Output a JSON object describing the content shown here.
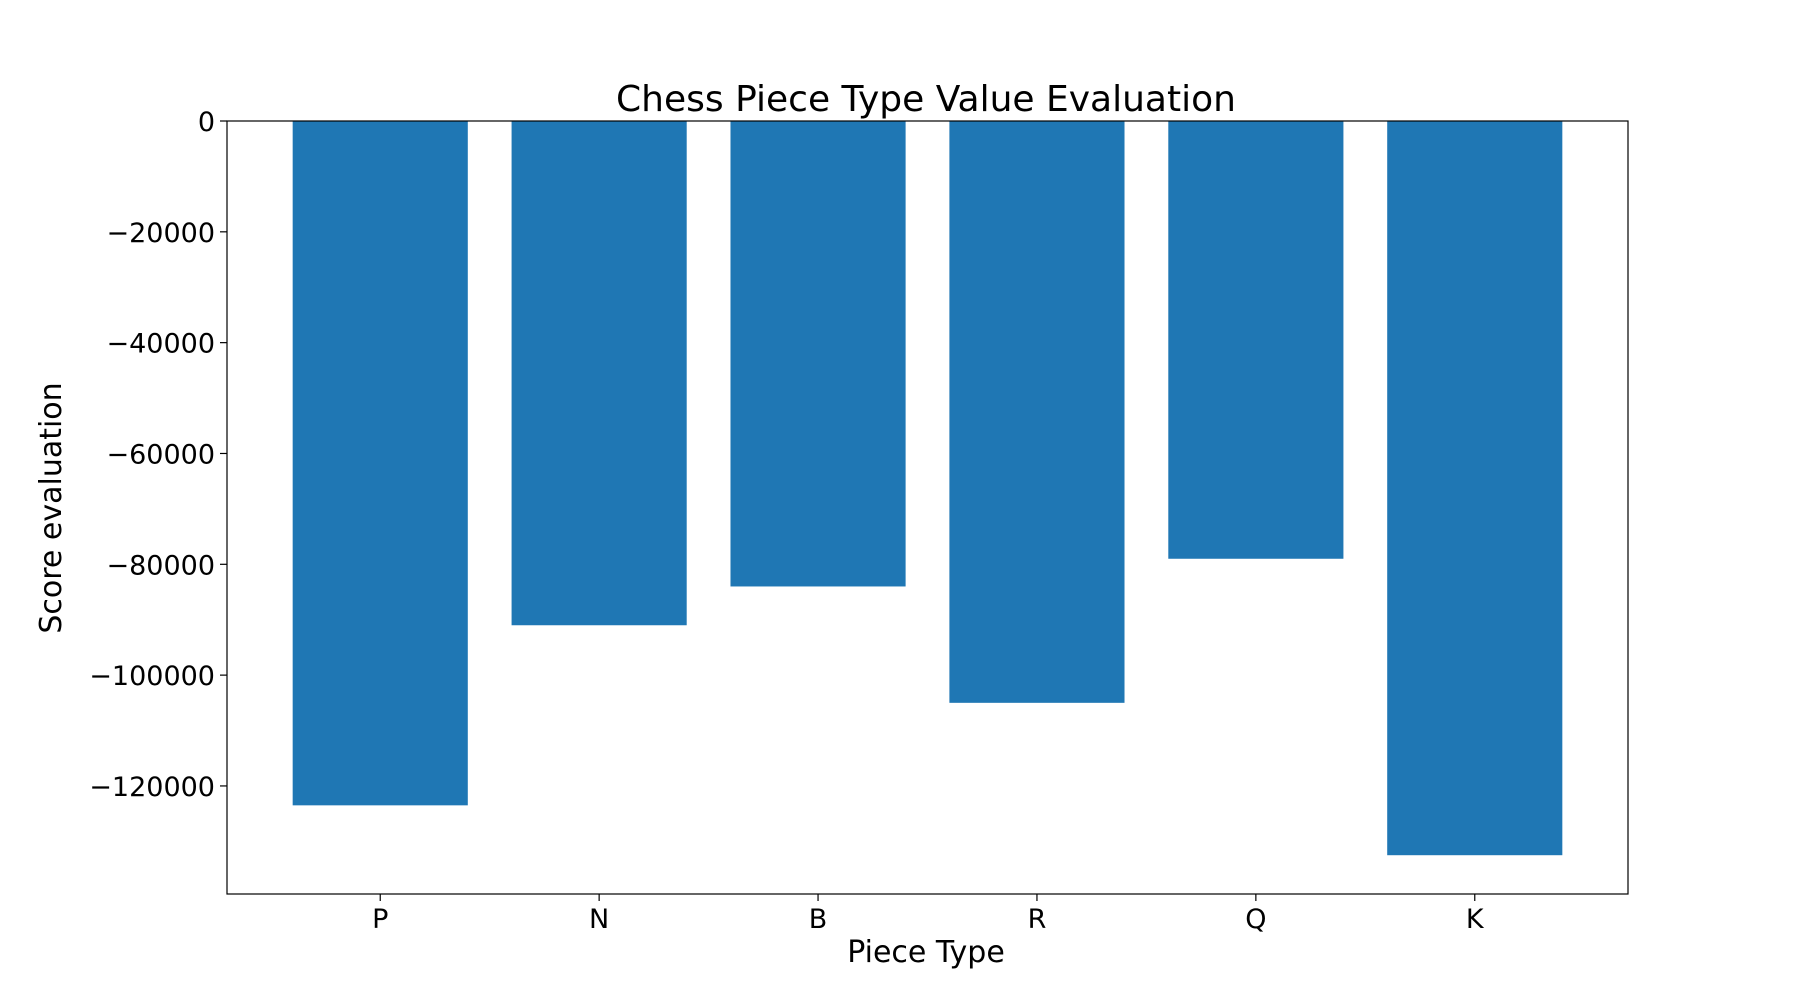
{
  "chart_data": {
    "type": "bar",
    "title": "Chess Piece Type Value Evaluation",
    "xlabel": "Piece Type",
    "ylabel": "Score evaluation",
    "categories": [
      "P",
      "N",
      "B",
      "R",
      "Q",
      "K"
    ],
    "values": [
      -123500,
      -91000,
      -84000,
      -105000,
      -79000,
      -132500
    ],
    "ylim": [
      -139500,
      0
    ],
    "yticks": [
      0,
      -20000,
      -40000,
      -60000,
      -80000,
      -100000,
      -120000
    ],
    "ytick_labels": [
      "0",
      "−20000",
      "−40000",
      "−60000",
      "−80000",
      "−100000",
      "−120000"
    ],
    "grid": false,
    "bar_color": "#1f77b4"
  }
}
